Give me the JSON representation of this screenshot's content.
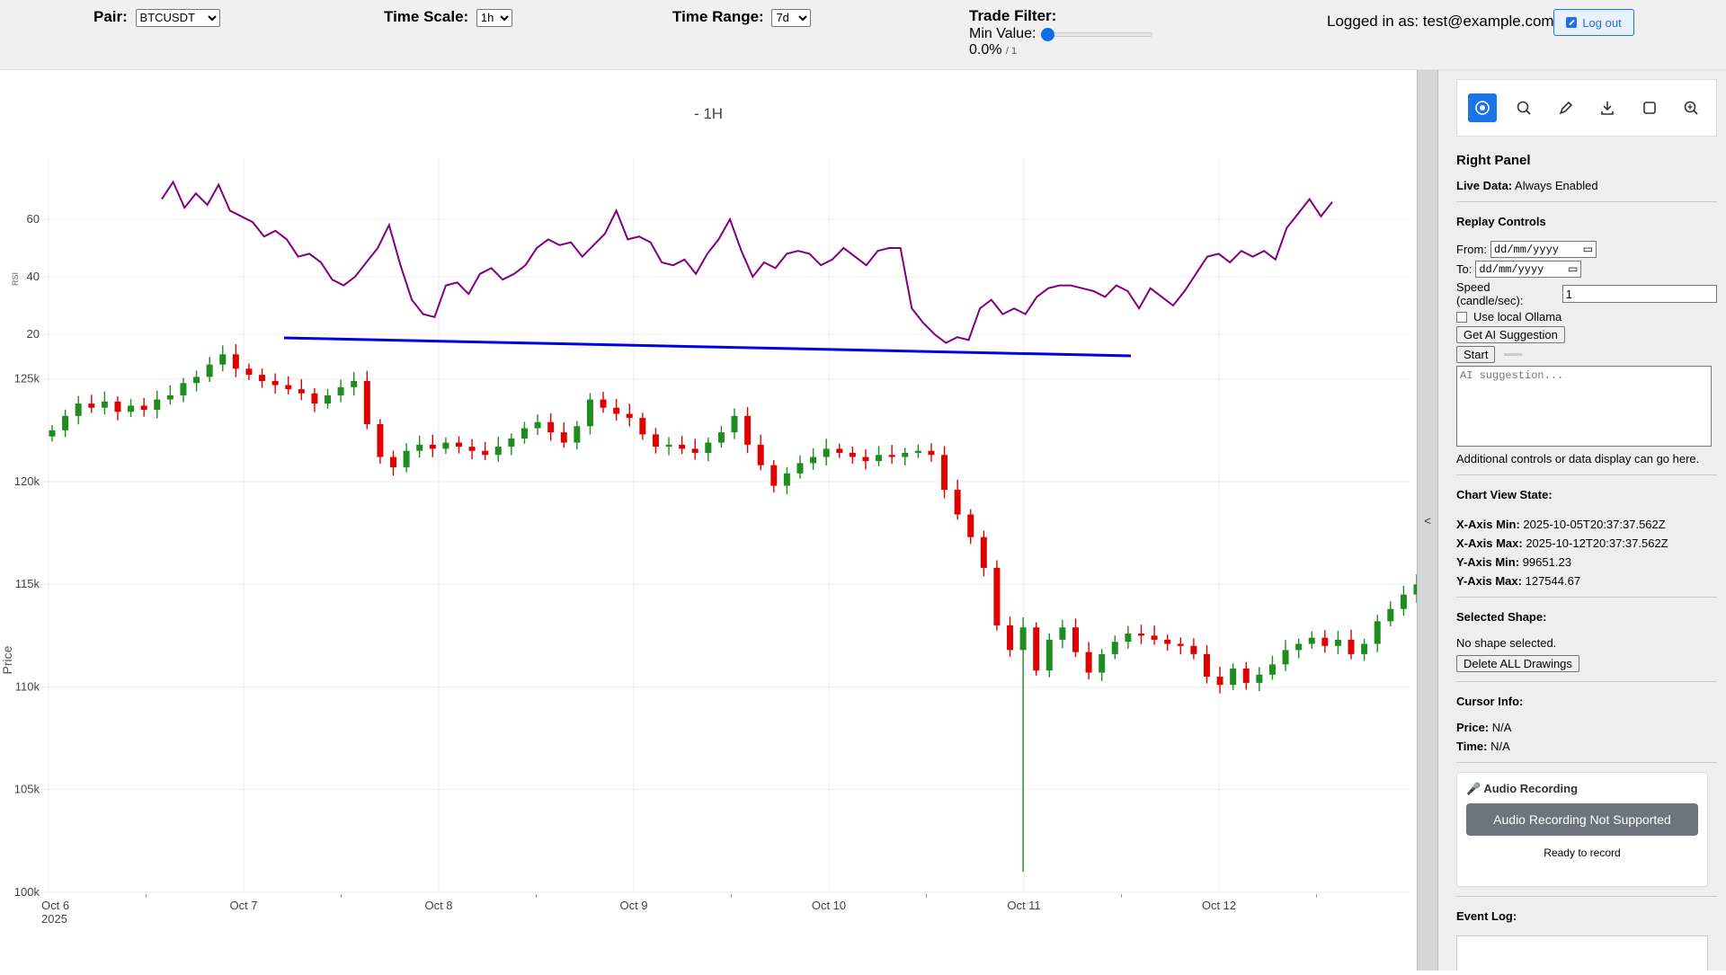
{
  "topbar": {
    "pair_label": "Pair:",
    "pair_value": "BTCUSDT",
    "timescale_label": "Time Scale:",
    "timescale_value": "1h",
    "timerange_label": "Time Range:",
    "timerange_value": "7d",
    "tradefilter_label": "Trade Filter:",
    "minvalue_label": "Min Value:",
    "minvalue_percent": "0.0%",
    "minvalue_max": "/ 1",
    "minvalue_fraction": 0.0,
    "login_text": "Logged in as: test@example.com",
    "logout_label": "Log out"
  },
  "chart_title": "- 1H",
  "chart_data": {
    "type": "candlestick",
    "title": "- 1H",
    "xlabel": "",
    "ylabel": "Price",
    "x_ticks": [
      "Oct 6",
      "Oct 7",
      "Oct 8",
      "Oct 9",
      "Oct 10",
      "Oct 11",
      "Oct 12"
    ],
    "x_year_label": "2025",
    "y_ticks": [
      "100k",
      "105k",
      "110k",
      "115k",
      "120k",
      "125k"
    ],
    "ylim": [
      100000,
      127000
    ],
    "grid": true,
    "price_closes": [
      122500,
      123200,
      123800,
      123600,
      123900,
      123400,
      123700,
      123500,
      124000,
      124200,
      124800,
      125100,
      125700,
      126200,
      125500,
      125200,
      124900,
      124700,
      124500,
      124300,
      123800,
      124200,
      124600,
      124900,
      122800,
      121200,
      120700,
      121500,
      121800,
      121600,
      121900,
      121700,
      121500,
      121300,
      121700,
      122100,
      122600,
      122900,
      122400,
      121900,
      122700,
      124000,
      123600,
      123300,
      123100,
      122300,
      121700,
      121800,
      121600,
      121400,
      121900,
      122400,
      123200,
      121800,
      120800,
      119800,
      120400,
      120900,
      121200,
      121600,
      121400,
      121200,
      121000,
      121300,
      121200,
      121400,
      121500,
      121300,
      119600,
      118400,
      117300,
      115800,
      113000,
      111800,
      112900,
      110800,
      112300,
      112900,
      111700,
      110700,
      111600,
      112200,
      112600,
      112500,
      112300,
      112100,
      112000,
      111600,
      110500,
      110100,
      110900,
      110200,
      110600,
      111100,
      111800,
      112100,
      112400,
      112000,
      112300,
      111600,
      112100,
      113200,
      113800,
      114500,
      115000
    ],
    "rsi": {
      "axis_label": "RSI",
      "y_ticks": [
        "20",
        "40",
        "60"
      ],
      "ylim": [
        15,
        75
      ],
      "values": [
        67,
        73,
        64,
        69,
        65,
        72,
        63,
        61,
        59,
        54,
        56,
        53,
        47,
        48,
        45,
        39,
        37,
        40,
        45,
        50,
        58,
        44,
        32,
        27,
        26,
        37,
        38,
        34,
        41,
        43,
        39,
        41,
        44,
        50,
        53,
        51,
        52,
        47,
        51,
        55,
        63,
        53,
        54,
        52,
        45,
        44,
        46,
        41,
        48,
        53,
        60,
        49,
        40,
        45,
        43,
        48,
        49,
        48,
        44,
        46,
        50,
        47,
        44,
        49,
        50,
        50,
        29,
        24,
        20,
        17,
        19,
        18,
        29,
        32,
        27,
        29,
        27,
        33,
        36,
        37,
        37,
        36,
        35,
        33,
        37,
        35,
        29,
        36,
        33,
        30,
        35,
        41,
        47,
        48,
        45,
        49,
        47,
        49,
        46,
        57,
        62,
        67,
        61,
        66
      ],
      "trendline": {
        "from": {
          "x": "2025-10-07T00:00",
          "y": 18
        },
        "to": {
          "x": "2025-10-11T12:00",
          "y": 11
        }
      }
    }
  },
  "panel": {
    "title": "Right Panel",
    "live_label": "Live Data:",
    "live_value": "Always Enabled",
    "replay_title": "Replay Controls",
    "from_label": "From:",
    "to_label": "To:",
    "date_placeholder": "dd/mm/yyyy",
    "speed_label": "Speed (candle/sec):",
    "speed_value": "1",
    "ollama_label": "Use local Ollama",
    "ai_button": "Get AI Suggestion",
    "start_button": "Start",
    "ai_placeholder": "AI suggestion...",
    "additional_text": "Additional controls or data display can go here.",
    "view_title": "Chart View State:",
    "xmin_label": "X-Axis Min:",
    "xmin_value": "2025-10-05T20:37:37.562Z",
    "xmax_label": "X-Axis Max:",
    "xmax_value": "2025-10-12T20:37:37.562Z",
    "ymin_label": "Y-Axis Min:",
    "ymin_value": "99651.23",
    "ymax_label": "Y-Axis Max:",
    "ymax_value": "127544.67",
    "selected_title": "Selected Shape:",
    "selected_value": "No shape selected.",
    "delete_button": "Delete ALL Drawings",
    "cursor_title": "Cursor Info:",
    "price_label": "Price:",
    "price_value": "N/A",
    "time_label": "Time:",
    "time_value": "N/A",
    "audio_title": "🎤 Audio Recording",
    "audio_button": "Audio Recording Not Supported",
    "audio_status": "Ready to record",
    "eventlog_title": "Event Log:",
    "collapse_glyph": "<"
  }
}
